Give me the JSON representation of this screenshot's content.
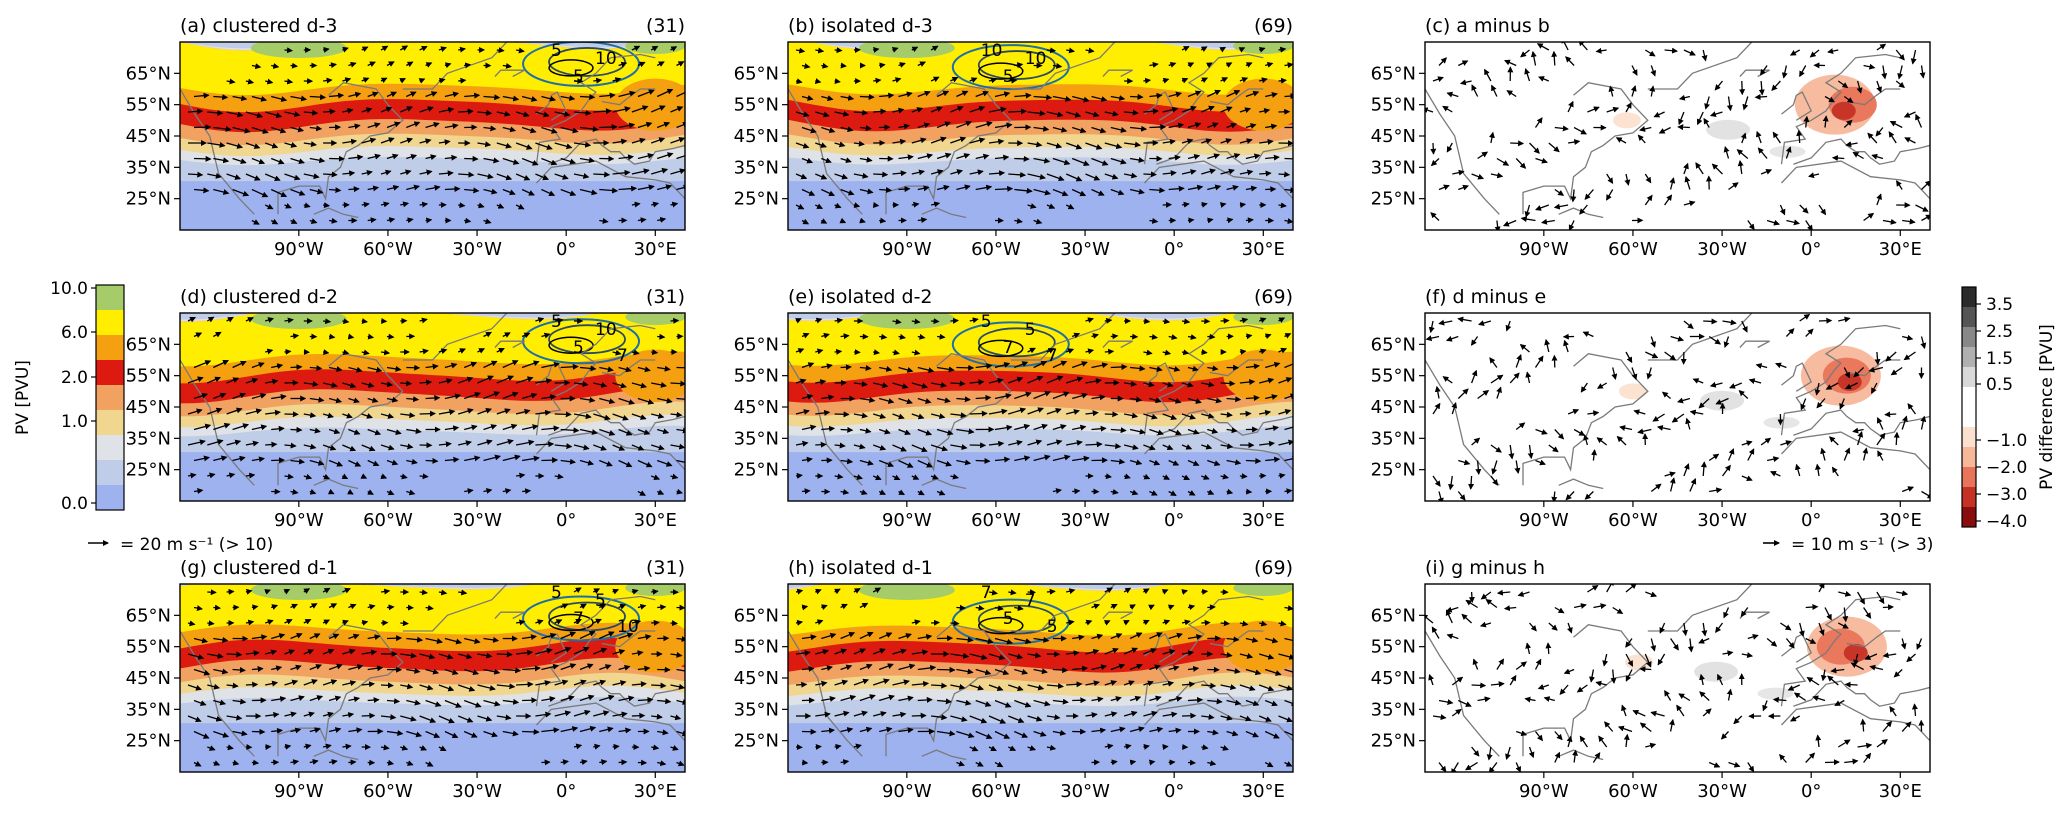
{
  "panels": [
    {
      "label": "(a) clustered d-3",
      "count": "(31)",
      "kind": "pv",
      "variant": 0
    },
    {
      "label": "(b) isolated d-3",
      "count": "(69)",
      "kind": "pv",
      "variant": 1
    },
    {
      "label": "(c) a minus b",
      "count": "",
      "kind": "diff",
      "variant": 0
    },
    {
      "label": "(d) clustered d-2",
      "count": "(31)",
      "kind": "pv",
      "variant": 2
    },
    {
      "label": "(e) isolated d-2",
      "count": "(69)",
      "kind": "pv",
      "variant": 3
    },
    {
      "label": "(f) d minus e",
      "count": "",
      "kind": "diff",
      "variant": 1
    },
    {
      "label": "(g) clustered d-1",
      "count": "(31)",
      "kind": "pv",
      "variant": 4
    },
    {
      "label": "(h) isolated d-1",
      "count": "(69)",
      "kind": "pv",
      "variant": 5
    },
    {
      "label": "(i) g minus h",
      "count": "",
      "kind": "diff",
      "variant": 2
    }
  ],
  "axes": {
    "lat_ticks": [
      "65°N",
      "55°N",
      "45°N",
      "35°N",
      "25°N"
    ],
    "lon_ticks": [
      "90°W",
      "60°W",
      "30°W",
      "0°",
      "30°E"
    ]
  },
  "contour_labels": {
    "a": [
      "5",
      "5",
      "10"
    ],
    "b": [
      "10",
      "5",
      "10"
    ],
    "d": [
      "5",
      "5",
      "10",
      "7"
    ],
    "e": [
      "5",
      "7",
      "5",
      "7"
    ],
    "g": [
      "5",
      "7",
      "5",
      "10"
    ],
    "h": [
      "7",
      "5",
      "7",
      "5"
    ]
  },
  "left_colorbar": {
    "label": "PV [PVU]",
    "ticks": [
      "10.0",
      "6.0",
      "2.0",
      "1.0",
      "0.0"
    ],
    "colors": [
      "#a6cc6a",
      "#ffee00",
      "#f5a010",
      "#dd1a10",
      "#f2a260",
      "#f1d690",
      "#dfe3e8",
      "#c0cde8",
      "#9eb2f0"
    ],
    "vector_key": "= 20 m s⁻¹ (> 10)"
  },
  "right_colorbar": {
    "label": "PV difference [PVU]",
    "ticks": [
      "3.5",
      "2.5",
      "1.5",
      "0.5",
      "−1.0",
      "−2.0",
      "−3.0",
      "−4.0"
    ],
    "colors": [
      "#2b2b2b",
      "#555555",
      "#888888",
      "#b0b0b0",
      "#d9d9d9",
      "#ffffff",
      "#ffffff",
      "#fbe0cf",
      "#f7b89a",
      "#e8745a",
      "#c53125",
      "#8a0d0d"
    ],
    "vector_key": "= 10 m s⁻¹ (> 3)"
  },
  "chart_data": {
    "type": "heatmap",
    "description_ignore": "",
    "variable": "PV",
    "units": "PVU",
    "lon_range": [
      -130,
      40
    ],
    "lat_range": [
      15,
      75
    ],
    "pv_levels": [
      0.0,
      0.5,
      1.0,
      1.5,
      2.0,
      4.0,
      6.0,
      8.0,
      10.0
    ],
    "diff_levels": [
      -4.0,
      -3.0,
      -2.0,
      -1.0,
      0.5,
      1.5,
      2.5,
      3.5
    ]
  }
}
